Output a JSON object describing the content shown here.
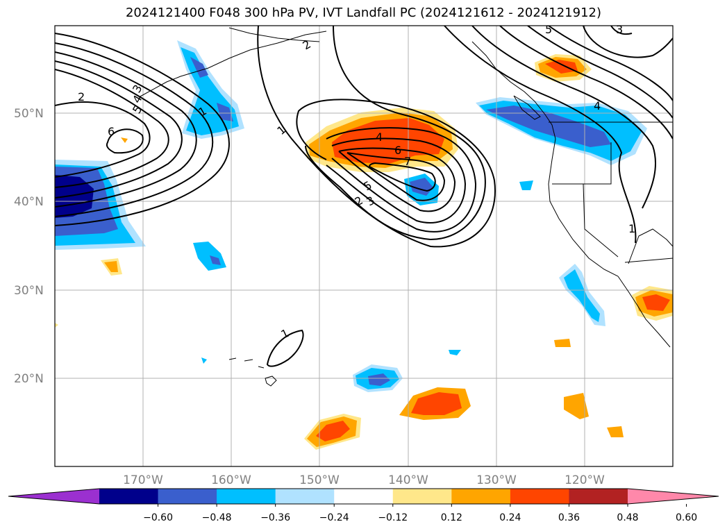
{
  "title": "2024121400 F048 300 hPa PV, IVT Landfall PC (2024121612 - 2024121912)",
  "map": {
    "projection": "PlateCarree",
    "lon_range": [
      -180,
      -110
    ],
    "lat_range": [
      10,
      60
    ],
    "lat_ticks": [
      "20°N",
      "30°N",
      "40°N",
      "50°N"
    ],
    "lon_ticks": [
      "170°W",
      "160°W",
      "150°W",
      "140°W",
      "130°W",
      "120°W"
    ],
    "grid": true,
    "contour_labels": [
      "1",
      "2",
      "3",
      "4",
      "5",
      "6",
      "7",
      "1",
      "2",
      "3",
      "4",
      "5",
      "6",
      "1",
      "2",
      "3",
      "4",
      "5",
      "1"
    ]
  },
  "colorbar": {
    "tick_labels": [
      "−0.60",
      "−0.48",
      "−0.36",
      "−0.24",
      "−0.12",
      "0.12",
      "0.24",
      "0.36",
      "0.48",
      "0.60"
    ],
    "colors": [
      "#9b30d0",
      "#00008b",
      "#3a5fcd",
      "#00bfff",
      "#b0e2ff",
      "#ffffff",
      "#ffe78a",
      "#ffa500",
      "#ff4500",
      "#b22222",
      "#ff88aa"
    ],
    "extend": "both"
  }
}
